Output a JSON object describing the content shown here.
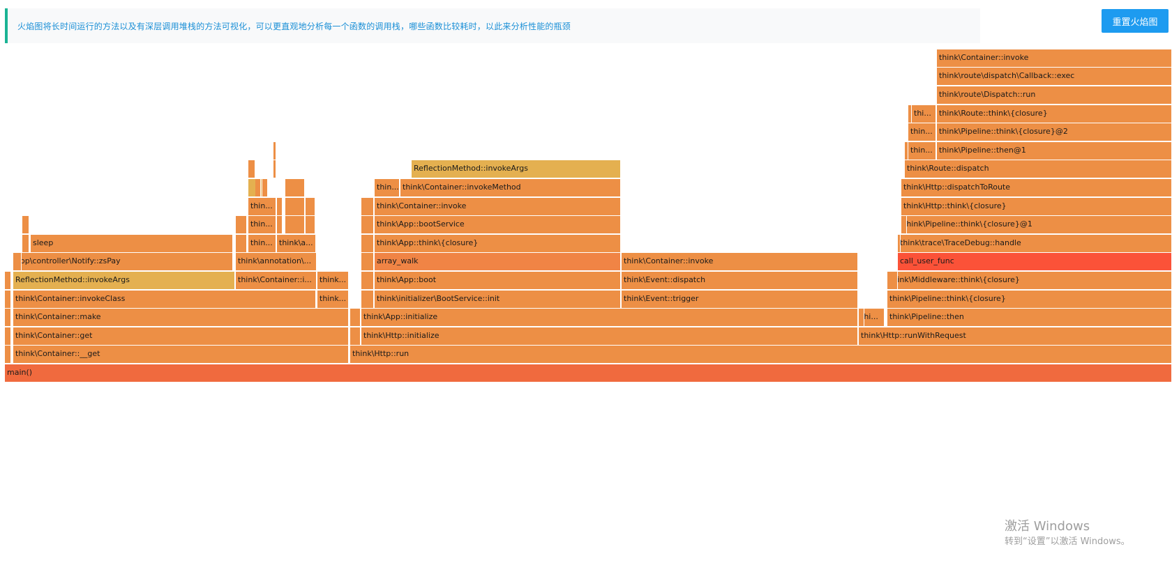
{
  "notice": {
    "text": "火焰图将长时间运行的方法以及有深层调用堆栈的方法可视化，可以更直观地分析每一个函数的调用栈，哪些函数比较耗时，以此来分析性能的瓶颈"
  },
  "toolbar": {
    "reset_label": "重置火焰图"
  },
  "colors": {
    "orange": "#ed8f45",
    "deep_orange": "#f08445",
    "yellow": "#e4b050",
    "red_orange": "#f06a3e",
    "red": "#fb5238",
    "notice_border": "#1ab394",
    "notice_text": "#1a8fd6",
    "button": "#1d9bf0"
  },
  "flamegraph": {
    "frames": [
      {
        "label": "main()",
        "color": "red_orange"
      },
      {
        "label": "think\\Container::__get",
        "color": "orange"
      },
      {
        "label": "think\\Http::run",
        "color": "orange"
      },
      {
        "label": "think\\Container::get",
        "color": "orange"
      },
      {
        "label": "think\\Http::initialize",
        "color": "orange"
      },
      {
        "label": "think\\Http::runWithRequest",
        "color": "orange"
      },
      {
        "label": "think\\Container::make",
        "color": "orange"
      },
      {
        "label": "think\\App::initialize",
        "color": "orange"
      },
      {
        "label": "thi...",
        "color": "orange"
      },
      {
        "label": "think\\Pipeline::then",
        "color": "orange"
      },
      {
        "label": "think\\Container::invokeClass",
        "color": "orange"
      },
      {
        "label": "think...",
        "color": "orange"
      },
      {
        "label": "think\\initializer\\BootService::init",
        "color": "orange"
      },
      {
        "label": "think\\Event::trigger",
        "color": "orange"
      },
      {
        "label": "think\\Pipeline::think\\{closure}",
        "color": "orange"
      },
      {
        "label": "ReflectionMethod::invokeArgs",
        "color": "yellow"
      },
      {
        "label": "think\\Container::i...",
        "color": "orange"
      },
      {
        "label": "think...",
        "color": "orange"
      },
      {
        "label": "think\\App::boot",
        "color": "orange"
      },
      {
        "label": "think\\Event::dispatch",
        "color": "orange"
      },
      {
        "label": "think\\Middleware::think\\{closure}",
        "color": "orange"
      },
      {
        "label": "app\\controller\\Notify::zsPay",
        "color": "orange"
      },
      {
        "label": "think\\annotation\\...",
        "color": "orange"
      },
      {
        "label": "array_walk",
        "color": "deep_orange"
      },
      {
        "label": "think\\Container::invoke",
        "color": "orange"
      },
      {
        "label": "call_user_func",
        "color": "red"
      },
      {
        "label": "sleep",
        "color": "orange"
      },
      {
        "label": "thin...",
        "color": "orange"
      },
      {
        "label": "think\\a...",
        "color": "orange"
      },
      {
        "label": "think\\App::think\\{closure}",
        "color": "orange"
      },
      {
        "label": "think\\trace\\TraceDebug::handle",
        "color": "orange"
      },
      {
        "label": "thin...",
        "color": "orange"
      },
      {
        "label": "think\\App::bootService",
        "color": "orange"
      },
      {
        "label": "think\\Pipeline::think\\{closure}@1",
        "color": "orange"
      },
      {
        "label": "thin...",
        "color": "orange"
      },
      {
        "label": "think\\Container::invoke",
        "color": "orange"
      },
      {
        "label": "think\\Http::think\\{closure}",
        "color": "orange"
      },
      {
        "label": "thin...",
        "color": "orange"
      },
      {
        "label": "think\\Container::invokeMethod",
        "color": "orange"
      },
      {
        "label": "think\\Http::dispatchToRoute",
        "color": "orange"
      },
      {
        "label": "ReflectionMethod::invokeArgs",
        "color": "yellow"
      },
      {
        "label": "think\\Route::dispatch",
        "color": "orange"
      },
      {
        "label": "thin...",
        "color": "orange"
      },
      {
        "label": "think\\Pipeline::then@1",
        "color": "orange"
      },
      {
        "label": "thin...",
        "color": "orange"
      },
      {
        "label": "think\\Pipeline::think\\{closure}@2",
        "color": "orange"
      },
      {
        "label": "thi...",
        "color": "orange"
      },
      {
        "label": "think\\Route::think\\{closure}",
        "color": "orange"
      },
      {
        "label": "think\\route\\Dispatch::run",
        "color": "orange"
      },
      {
        "label": "think\\route\\dispatch\\Callback::exec",
        "color": "orange"
      },
      {
        "label": "think\\Container::invoke",
        "color": "orange"
      }
    ]
  },
  "watermark": {
    "title": "激活 Windows",
    "subtitle": "转到“设置”以激活 Windows。"
  }
}
